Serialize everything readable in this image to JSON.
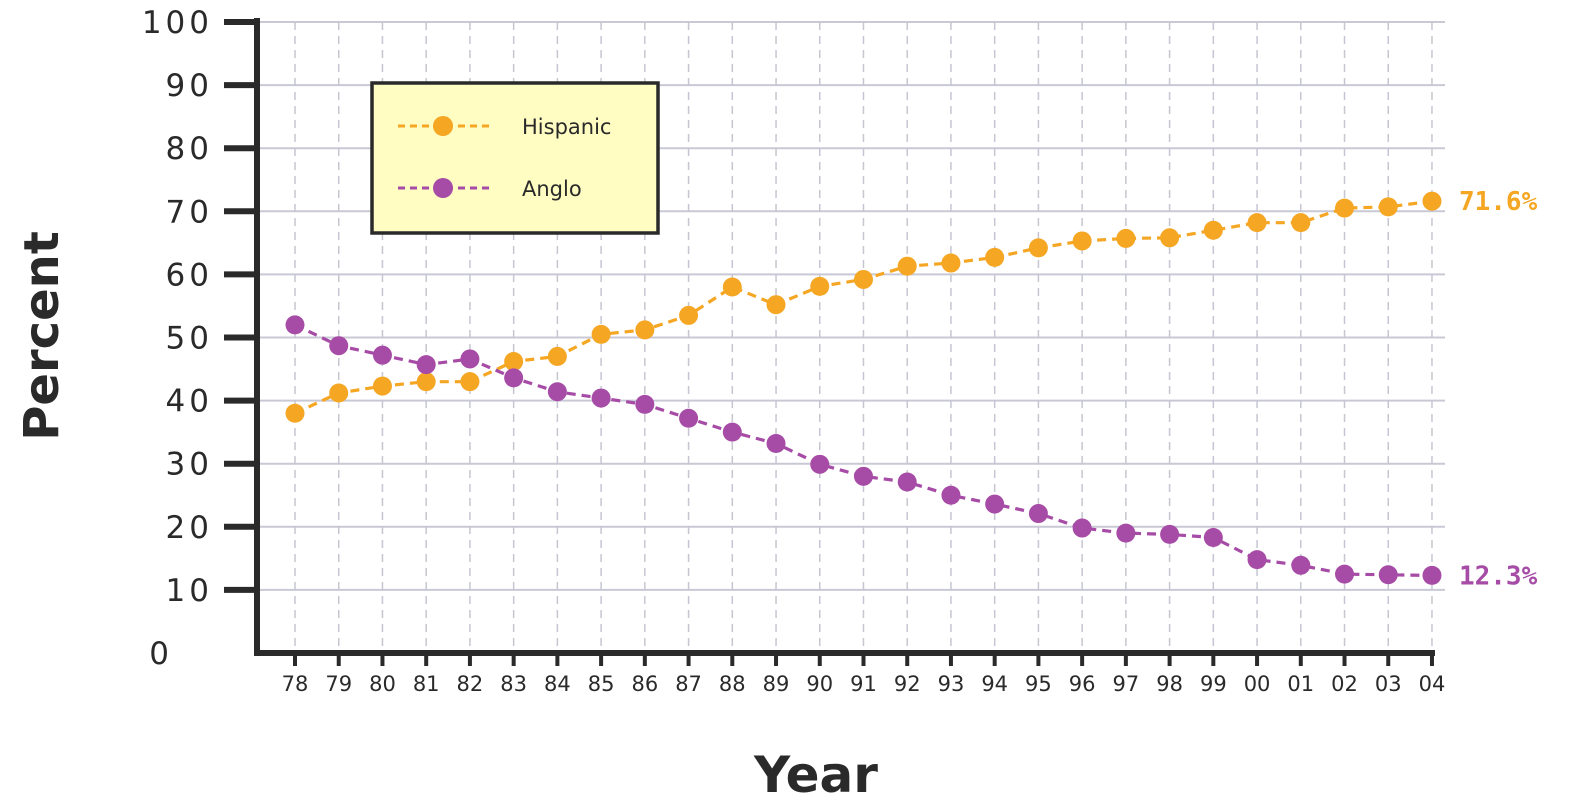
{
  "chart_data": {
    "type": "line",
    "xlabel": "Year",
    "ylabel": "Percent",
    "ylim": [
      0,
      100
    ],
    "yticks": [
      "0",
      "10",
      "20",
      "30",
      "40",
      "50",
      "60",
      "70",
      "80",
      "90",
      "100"
    ],
    "categories": [
      "78",
      "79",
      "80",
      "81",
      "82",
      "83",
      "84",
      "85",
      "86",
      "87",
      "88",
      "89",
      "90",
      "91",
      "92",
      "93",
      "94",
      "95",
      "96",
      "97",
      "98",
      "99",
      "00",
      "01",
      "02",
      "03",
      "04"
    ],
    "grid": true,
    "legend_position": "top-left",
    "series": [
      {
        "name": "Hispanic",
        "color": "#f5a623",
        "end_label": "71.6%",
        "values": [
          38,
          41.2,
          42.3,
          43,
          43,
          46.2,
          47,
          50.5,
          51.2,
          53.5,
          58,
          55.2,
          58.1,
          59.2,
          61.3,
          61.8,
          62.7,
          64.2,
          65.3,
          65.7,
          65.8,
          67,
          68.2,
          68.2,
          70.5,
          70.7,
          71.6
        ]
      },
      {
        "name": "Anglo",
        "color": "#a64ca6",
        "end_label": "12.3%",
        "values": [
          52,
          48.7,
          47.2,
          45.7,
          46.6,
          43.6,
          41.4,
          40.4,
          39.4,
          37.2,
          35,
          33.2,
          29.9,
          28,
          27.1,
          25,
          23.6,
          22.1,
          19.8,
          19,
          18.8,
          18.3,
          14.8,
          13.9,
          12.5,
          12.4,
          12.3
        ]
      }
    ]
  }
}
